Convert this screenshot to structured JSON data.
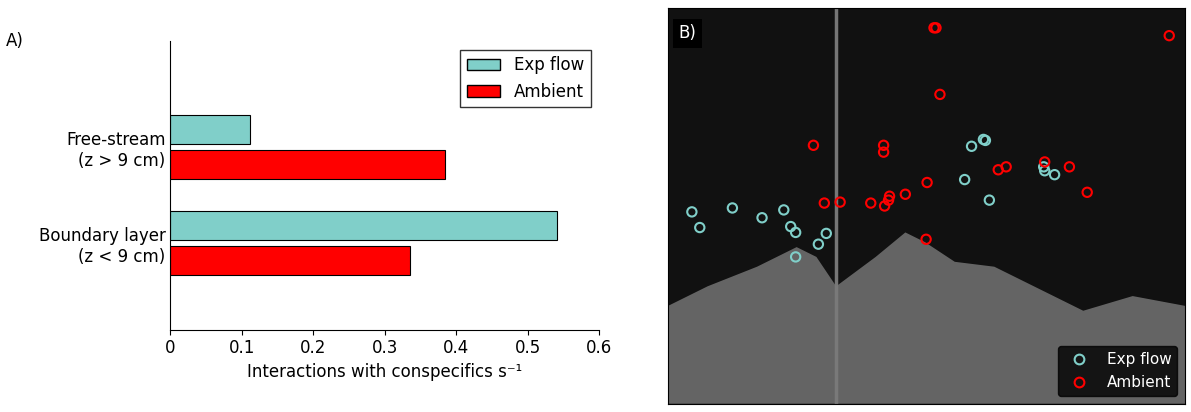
{
  "chart_data": [
    {
      "type": "bar",
      "title": "A)",
      "orientation": "horizontal",
      "categories": [
        "Free-stream\n(z > 9 cm)",
        "Boundary layer\n(z < 9 cm)"
      ],
      "series": [
        {
          "name": "Exp flow",
          "color": "#80cfc9",
          "values": [
            0.112,
            0.541
          ]
        },
        {
          "name": "Ambient",
          "color": "#ff0000",
          "values": [
            0.385,
            0.336
          ]
        }
      ],
      "x_label": "Interactions with conspecifics s⁻¹",
      "xlim": [
        0,
        0.6
      ],
      "xticks": [
        0,
        0.1,
        0.2,
        0.3,
        0.4,
        0.5,
        0.6
      ],
      "legend": "upper right",
      "grid": false
    },
    {
      "type": "scatter",
      "title": "B)",
      "tick_labels": false,
      "legend": "lower right",
      "xlim": [
        0,
        523
      ],
      "ylim": [
        0,
        404
      ],
      "series": [
        {
          "name": "Exp flow",
          "color": "#80cfc9",
          "marker": "o",
          "x": [
            24,
            32,
            65,
            95,
            117,
            124,
            129,
            129,
            152,
            160,
            307,
            319,
            321,
            300,
            325,
            380,
            381,
            391
          ],
          "y": [
            196,
            180,
            200,
            190,
            198,
            181,
            175,
            150,
            163,
            174,
            263,
            270,
            269,
            229,
            208,
            242,
            238,
            234
          ]
        },
        {
          "name": "Ambient",
          "color": "#ff0000",
          "marker": "o",
          "x": [
            269,
            271,
            507,
            275,
            147,
            218,
            218,
            262,
            158,
            174,
            205,
            219,
            223,
            224,
            240,
            261,
            334,
            342,
            381,
            406,
            424
          ],
          "y": [
            384,
            384,
            376,
            316,
            264,
            264,
            257,
            226,
            205,
            206,
            205,
            202,
            208,
            212,
            214,
            168,
            239,
            242,
            247,
            242,
            216
          ]
        }
      ]
    }
  ]
}
